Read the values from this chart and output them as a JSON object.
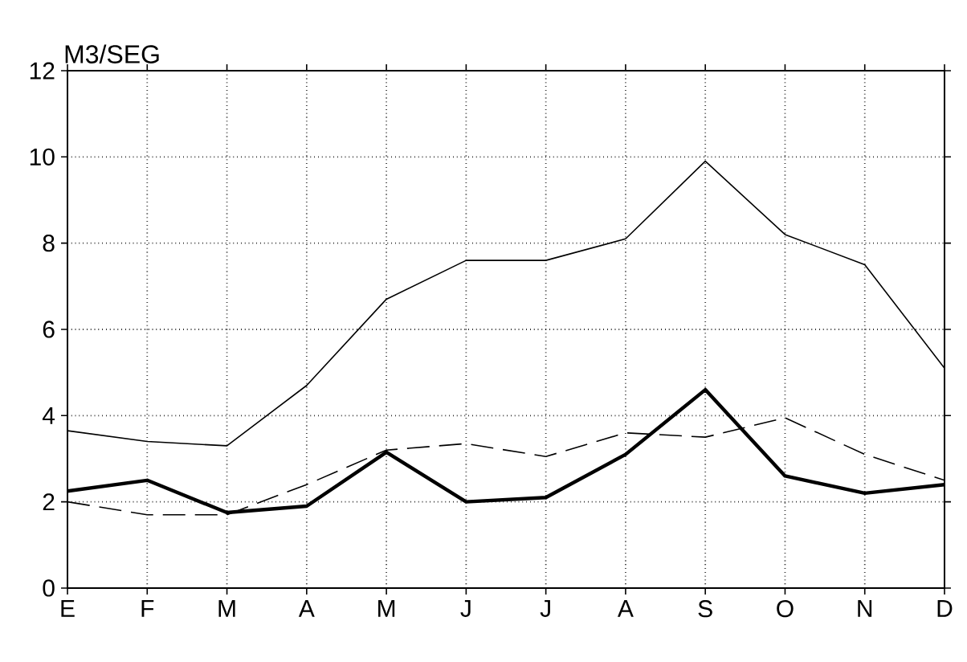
{
  "chart_data": {
    "type": "line",
    "ylabel": "M3/SEG",
    "categories": [
      "E",
      "F",
      "M",
      "A",
      "M",
      "J",
      "J",
      "A",
      "S",
      "O",
      "N",
      "D"
    ],
    "series": [
      {
        "color": "#000000",
        "line_style": "solid",
        "values": [
          3.65,
          3.4,
          3.3,
          4.7,
          6.7,
          7.6,
          7.6,
          8.1,
          9.9,
          8.2,
          7.5,
          5.1
        ]
      },
      {
        "color": "#000000",
        "line_style": "solid",
        "values": [
          2.25,
          2.5,
          1.75,
          1.9,
          3.15,
          2.0,
          2.1,
          3.1,
          4.6,
          2.6,
          2.2,
          2.4
        ]
      },
      {
        "color": "#000000",
        "line_style": "dashed",
        "values": [
          2.0,
          1.7,
          1.7,
          2.4,
          3.2,
          3.35,
          3.05,
          3.6,
          3.5,
          3.95,
          3.1,
          2.5
        ]
      }
    ],
    "ylim": [
      0,
      12
    ],
    "yticks": [
      0,
      2,
      4,
      6,
      8,
      10,
      12
    ],
    "grid": true,
    "marker": "none"
  }
}
